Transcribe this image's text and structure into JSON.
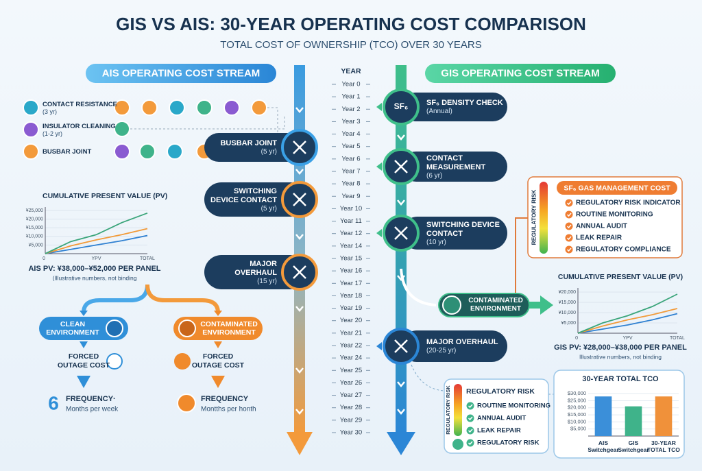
{
  "header": {
    "title": "GIS VS AIS: 30-YEAR OPERATING COST COMPARISON",
    "subtitle": "TOTAL COST OF OWNERSHIP (TCO) OVER 30 YEARS"
  },
  "ais": {
    "title": "AIS OPERATING COST STREAM",
    "legend": [
      {
        "label": "CONTACT RESISTANCE",
        "note": "(3 yr)"
      },
      {
        "label": "INSULATOR CLEANING",
        "note": "(1-2 yr)"
      },
      {
        "label": "BUSBAR JOINT"
      }
    ],
    "steps": [
      {
        "label": "BUSBAR JOINT",
        "note": "(5 yr)"
      },
      {
        "label": "SWITCHING DEVICE CONTACT",
        "note": "(5 yr)"
      },
      {
        "label": "MAJOR OVERHAUL",
        "note": "(15 yr)"
      }
    ],
    "pv_summary": "AIS PV: ¥38,000–¥52,000 PER PANEL",
    "disclaimer": "(Illustrative numbers, not binding",
    "branches": [
      {
        "label": "CLEAN ENVIRONMENT",
        "cost": "FORCED OUTAGE COST",
        "frequency_value": 6,
        "frequency": "FREQUENCY·",
        "frequency_unit": "Months per week"
      },
      {
        "label": "CONTAMINATED ENVIRONMENT",
        "cost": "FORCED OUTAGE COST",
        "frequency": "FREQUENCY",
        "frequency_unit": "Montths per honth"
      }
    ]
  },
  "timeline": {
    "title": "YEAR",
    "years": [
      "Year 0",
      "Year 1",
      "Year 2",
      "Year 3",
      "Year 4",
      "Year 5",
      "Year 6",
      "Year 7",
      "Year 8",
      "Year 9",
      "Year 10",
      "Year 11",
      "Year 12",
      "Year 14",
      "Year 15",
      "Year 16",
      "Year 17",
      "Year 18",
      "Year 19",
      "Year 20",
      "Year 21",
      "Year 22",
      "Year 24",
      "Year 25",
      "Year 26",
      "Year 27",
      "Year 28",
      "Year 29",
      "Year 30"
    ]
  },
  "gis": {
    "title": "GIS OPERATING COST STREAM",
    "sf6_icon": "SF₆",
    "steps": [
      {
        "label": "SF₆ DENSITY CHECK",
        "note": "(Annual)"
      },
      {
        "label": "CONTACT MEASUREMENT",
        "note": "(6 yr)"
      },
      {
        "label": "SWITCHING DEVICE CONTACT",
        "note": "(10 yr)"
      },
      {
        "label": "MAJOR OVERHAUL",
        "note": "(20-25 yr)"
      }
    ],
    "branch": "CONTAMINATED ENVIRONMENT",
    "sf6_box": {
      "title": "SF₆ GAS MANAGEMENT COST",
      "axis": "REGULATORY RISK",
      "items": [
        "REGULATORY RISK INDICATOR",
        "ROUTINE MONITORING",
        "ANNUAL AUDIT",
        "LEAK REPAIR",
        "REGULATORY COMPLIANCE"
      ]
    },
    "pv_summary": "GIS PV: ¥28,000–¥38,000 PER PANEL",
    "disclaimer": "Illustrative numbers, not binding",
    "risk_box": {
      "title": "REGULATORY RISK",
      "axis": "REGULATORY RISK",
      "items": [
        "ROUTINE MONITORING",
        "ANNUAL AUDIT",
        "LEAK REPAIR",
        "REGULATORY RISK"
      ]
    }
  },
  "chart_data": [
    {
      "type": "line",
      "title": "CUMULATIVE PRESENT VALUE (PV)",
      "categories": [
        "0",
        null,
        "YPV",
        null,
        "TOTAL"
      ],
      "ylim": [
        0,
        27000
      ],
      "yticks": [
        {
          "value": 5000,
          "label": "¥5,000"
        },
        {
          "value": 10000,
          "label": "¥10,000"
        },
        {
          "value": 15000,
          "label": "¥15,000"
        },
        {
          "value": 20000,
          "label": "¥20,000"
        },
        {
          "value": 25000,
          "label": "¥25,000"
        }
      ],
      "series": [
        {
          "color": "#2f80d1",
          "values": [
            0,
            2500,
            5000,
            7500,
            10500
          ]
        },
        {
          "color": "#f29a38",
          "values": [
            0,
            4500,
            8000,
            11000,
            14500
          ]
        },
        {
          "color": "#3aa57a",
          "values": [
            0,
            7000,
            11000,
            18000,
            23500
          ]
        }
      ]
    },
    {
      "type": "line",
      "title": "CUMULATIVE PRESENT VALUE (PV)",
      "categories": [
        "0",
        null,
        "YPV",
        null,
        "TOTAL"
      ],
      "ylim": [
        0,
        22000
      ],
      "yticks": [
        {
          "value": 5000,
          "label": "¥5,000"
        },
        {
          "value": 10000,
          "label": "¥10,000"
        },
        {
          "value": 15000,
          "label": "¥15,000"
        },
        {
          "value": 20000,
          "label": "¥20,000"
        }
      ],
      "series": [
        {
          "color": "#2f80d1",
          "values": [
            0,
            2000,
            4000,
            6500,
            9500
          ]
        },
        {
          "color": "#f29a38",
          "values": [
            0,
            3500,
            6500,
            9000,
            12000
          ]
        },
        {
          "color": "#3aa57a",
          "values": [
            0,
            5000,
            8500,
            13000,
            19000
          ]
        }
      ]
    },
    {
      "type": "bar",
      "title": "30-YEAR TOTAL TCO",
      "categories": [
        "AIS Switchgear",
        "GIS Switchgear",
        "30-YEAR TOTAL TCO"
      ],
      "values": [
        28000,
        21000,
        28000
      ],
      "colors": [
        "#3b8fd9",
        "#3fb38a",
        "#f0913a"
      ],
      "ylim": [
        0,
        32000
      ],
      "yticks": [
        {
          "value": 5000,
          "label": "$5,000"
        },
        {
          "value": 10000,
          "label": "$10,000"
        },
        {
          "value": 15000,
          "label": "$15,000"
        },
        {
          "value": 20000,
          "label": "$20,000"
        },
        {
          "value": 25000,
          "label": "$25,000"
        },
        {
          "value": 30000,
          "label": "$30,000"
        }
      ]
    }
  ]
}
